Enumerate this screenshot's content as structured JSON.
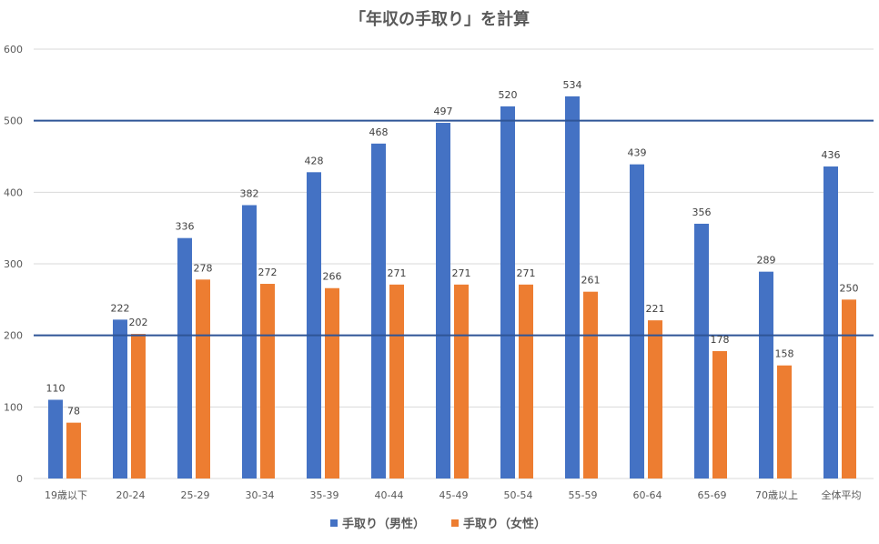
{
  "chart_data": {
    "type": "bar",
    "title": "「年収の手取り」を計算",
    "xlabel": "",
    "ylabel": "",
    "ylim": [
      0,
      600
    ],
    "yticks": [
      0,
      100,
      200,
      300,
      400,
      500,
      600
    ],
    "grid": true,
    "legend_position": "bottom",
    "categories": [
      "19歳以下",
      "20-24",
      "25-29",
      "30-34",
      "35-39",
      "40-44",
      "45-49",
      "50-54",
      "55-59",
      "60-64",
      "65-69",
      "70歳以上",
      "全体平均"
    ],
    "series": [
      {
        "name": "手取り（男性）",
        "color": "#4472c4",
        "values": [
          110,
          222,
          336,
          382,
          428,
          468,
          497,
          520,
          534,
          439,
          356,
          289,
          436
        ]
      },
      {
        "name": "手取り（女性）",
        "color": "#ed7d31",
        "values": [
          78,
          202,
          278,
          272,
          266,
          271,
          271,
          271,
          261,
          221,
          178,
          158,
          250
        ]
      }
    ],
    "reference_lines": [
      {
        "value": 500,
        "color": "#2f5597"
      },
      {
        "value": 200,
        "color": "#2f5597"
      }
    ]
  }
}
